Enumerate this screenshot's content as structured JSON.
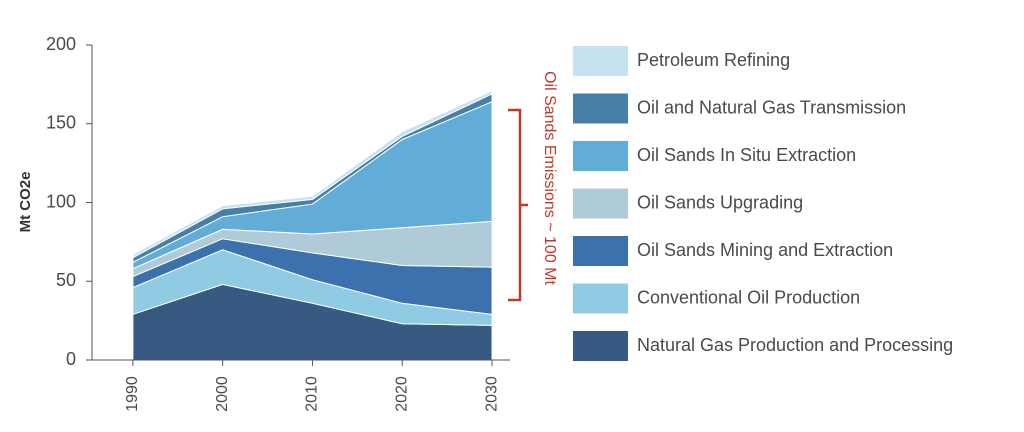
{
  "chart_data": {
    "type": "stacked-area",
    "y_label": "Mt CO2e",
    "annotation": "Oil Sands Emissions ~ 100 Mt",
    "annotation_color": "#c0392b",
    "x": [
      1990,
      2000,
      2010,
      2020,
      2030
    ],
    "xlim": [
      1985,
      2032
    ],
    "xticks": [
      1990,
      2000,
      2010,
      2020,
      2030
    ],
    "ylim": [
      0,
      200
    ],
    "yticks": [
      0,
      50,
      100,
      150,
      200
    ],
    "series": [
      {
        "name": "Natural Gas Production and Processing",
        "color": "#365a82",
        "values": [
          29,
          48,
          36,
          23,
          22
        ]
      },
      {
        "name": "Conventional Oil Production",
        "color": "#8fcbe3",
        "values": [
          17,
          22,
          15,
          13,
          7
        ]
      },
      {
        "name": "Oil Sands Mining and Extraction",
        "color": "#3b72ae",
        "values": [
          7,
          7,
          17,
          24,
          30
        ]
      },
      {
        "name": "Oil Sands Upgrading",
        "color": "#b0cbd8",
        "values": [
          5,
          6,
          12,
          24,
          29
        ]
      },
      {
        "name": "Oil Sands In Situ Extraction",
        "color": "#62add8",
        "values": [
          4,
          8,
          19,
          56,
          76
        ]
      },
      {
        "name": "Oil and Natural Gas Transmission",
        "color": "#4680a8",
        "values": [
          3,
          5,
          3,
          2,
          5
        ]
      },
      {
        "name": "Petroleum Refining",
        "color": "#c4e3ee",
        "values": [
          2,
          2,
          2,
          3,
          2
        ]
      }
    ]
  }
}
